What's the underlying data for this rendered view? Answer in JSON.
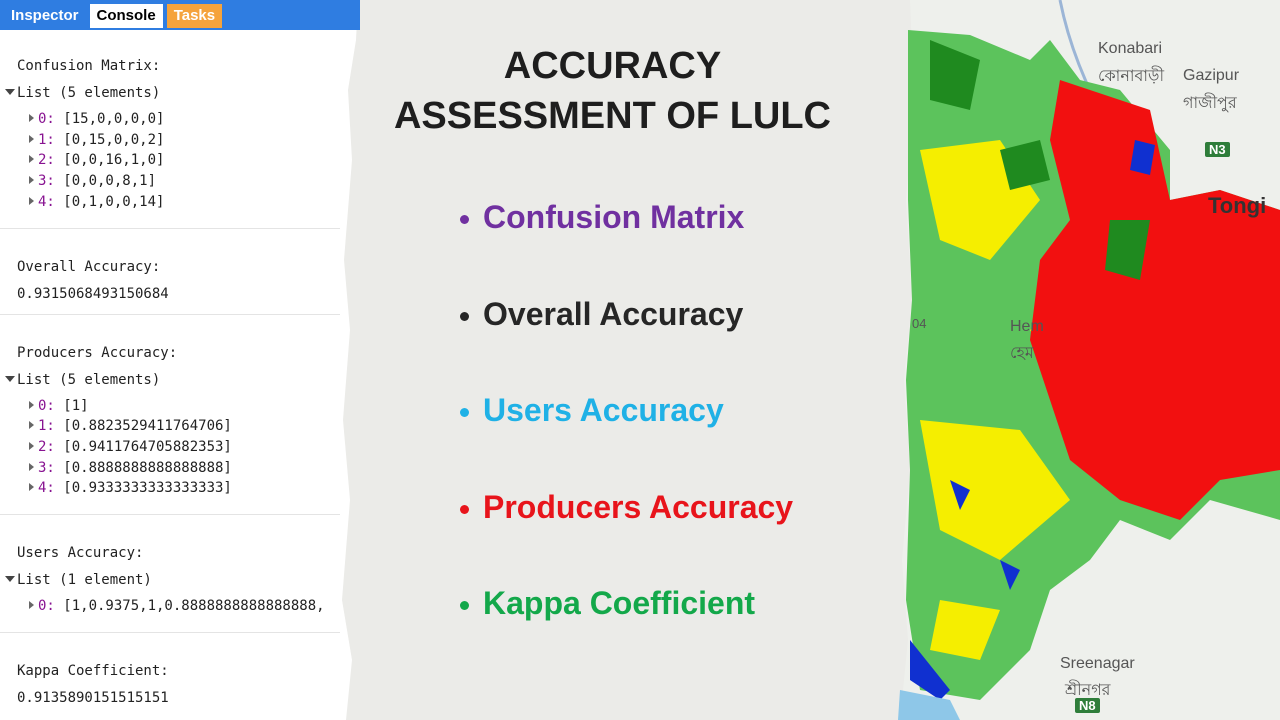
{
  "tabs": [
    {
      "text": "Inspector",
      "bg": "#2f7de1",
      "fg": "#ffffff"
    },
    {
      "text": "Console",
      "bg": "#ffffff",
      "fg": "#000000"
    },
    {
      "text": "Tasks",
      "bg": "#f5a33c",
      "fg": "#ffffff"
    }
  ],
  "console": [
    {
      "label": "Confusion Matrix:",
      "list": "List (5 elements)",
      "items": [
        {
          "index": "0:",
          "value": "[15,0,0,0,0]"
        },
        {
          "index": "1:",
          "value": "[0,15,0,0,2]"
        },
        {
          "index": "2:",
          "value": "[0,0,16,1,0]"
        },
        {
          "index": "3:",
          "value": "[0,0,0,8,1]"
        },
        {
          "index": "4:",
          "value": "[0,1,0,0,14]"
        }
      ]
    },
    {
      "label": "Overall Accuracy:",
      "value": "0.9315068493150684"
    },
    {
      "label": "Producers Accuracy:",
      "list": "List (5 elements)",
      "items": [
        {
          "index": "0:",
          "value": "[1]"
        },
        {
          "index": "1:",
          "value": "[0.8823529411764706]"
        },
        {
          "index": "2:",
          "value": "[0.9411764705882353]"
        },
        {
          "index": "3:",
          "value": "[0.8888888888888888]"
        },
        {
          "index": "4:",
          "value": "[0.9333333333333333]"
        }
      ]
    },
    {
      "label": "Users Accuracy:",
      "list": "List (1 element)",
      "items": [
        {
          "index": "0:",
          "value": "[1,0.9375,1,0.8888888888888888,"
        }
      ]
    },
    {
      "label": "Kappa Coefficient:",
      "value": "0.9135890151515151"
    }
  ],
  "title": [
    "ACCURACY",
    "ASSESSMENT OF LULC"
  ],
  "bullets": [
    {
      "text": "Confusion Matrix",
      "color": "#7030a0"
    },
    {
      "text": "Overall Accuracy",
      "color": "#262626"
    },
    {
      "text": "Users Accuracy",
      "color": "#1fb1e6"
    },
    {
      "text": "Producers Accuracy",
      "color": "#e8141b"
    },
    {
      "text": "Kappa Coefficient",
      "color": "#13a84a"
    }
  ],
  "map_labels": [
    "Konabari",
    "কোনাবাড়ী",
    "Gazipur",
    "গাজীপুর",
    "N3",
    "Tongi",
    "Hem",
    "হেম",
    "04",
    "Sreenagar",
    "শ্রীনগর",
    "N8"
  ]
}
